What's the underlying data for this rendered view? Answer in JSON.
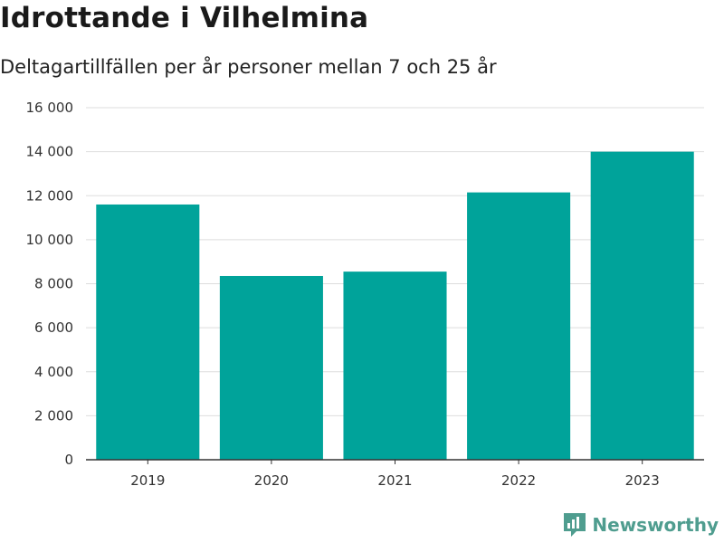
{
  "title": "Idrottande i Vilhelmina",
  "subtitle": "Deltagartillfällen per år personer mellan 7 och 25 år",
  "brand": {
    "name": "Newsworthy",
    "icon": "newsworthy-logo-icon",
    "color": "#4f9d8f"
  },
  "chart_data": {
    "type": "bar",
    "categories": [
      "2019",
      "2020",
      "2021",
      "2022",
      "2023"
    ],
    "values": [
      11600,
      8350,
      8550,
      12150,
      14000
    ],
    "ylim": [
      0,
      16000
    ],
    "yticks": [
      0,
      2000,
      4000,
      6000,
      8000,
      10000,
      12000,
      14000,
      16000
    ],
    "ytick_labels": [
      "0",
      "2 000",
      "4 000",
      "6 000",
      "8 000",
      "10 000",
      "12 000",
      "14 000",
      "16 000"
    ],
    "xlabel": "",
    "ylabel": "",
    "grid": true,
    "bar_color": "#00a39a",
    "grid_color": "#dddddd",
    "axis_color": "#333333"
  }
}
